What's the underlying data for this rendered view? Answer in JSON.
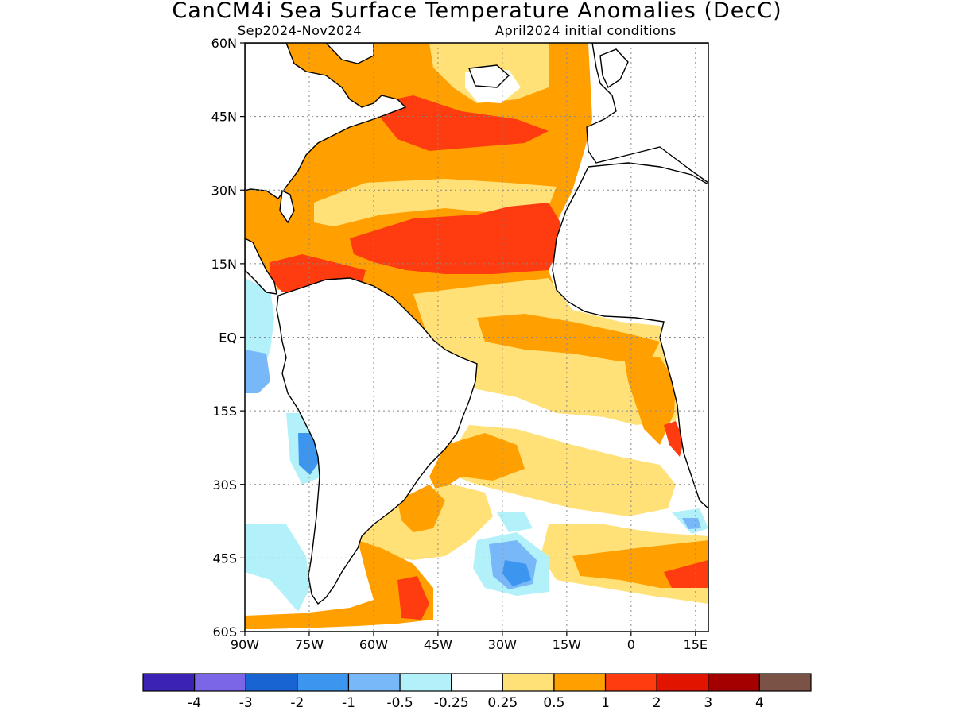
{
  "title": "CanCM4i Sea Surface Temperature Anomalies (DecC)",
  "subtitle_left": "Sep2024-Nov2024",
  "subtitle_right": "April2024 initial conditions",
  "map": {
    "lon_range": [
      -90,
      18
    ],
    "lat_range": [
      -60,
      60
    ],
    "lat_ticks": [
      {
        "value": 60,
        "label": "60N"
      },
      {
        "value": 45,
        "label": "45N"
      },
      {
        "value": 30,
        "label": "30N"
      },
      {
        "value": 15,
        "label": "15N"
      },
      {
        "value": 0,
        "label": "EQ"
      },
      {
        "value": -15,
        "label": "15S"
      },
      {
        "value": -30,
        "label": "30S"
      },
      {
        "value": -45,
        "label": "45S"
      },
      {
        "value": -60,
        "label": "60S"
      }
    ],
    "lon_ticks": [
      {
        "value": -90,
        "label": "90W"
      },
      {
        "value": -75,
        "label": "75W"
      },
      {
        "value": -60,
        "label": "60W"
      },
      {
        "value": -45,
        "label": "45W"
      },
      {
        "value": -30,
        "label": "30W"
      },
      {
        "value": -15,
        "label": "15W"
      },
      {
        "value": 0,
        "label": "0"
      },
      {
        "value": 15,
        "label": "15E"
      }
    ],
    "grid": "dotted",
    "land_color": "#ffffff",
    "coastline_color": "#000000"
  },
  "colorbar": {
    "colors": [
      "#3c22b4",
      "#7a66e6",
      "#1864d2",
      "#3c96f0",
      "#78b8f8",
      "#b2f0fa",
      "#ffffff",
      "#ffe178",
      "#ffa000",
      "#ff3c0f",
      "#e11400",
      "#a50000",
      "#7a5246"
    ],
    "labels": [
      "-4",
      "-3",
      "-2",
      "-1",
      "-0.5",
      "-0.25",
      "0.25",
      "0.5",
      "1",
      "2",
      "3",
      "4"
    ]
  },
  "palette": {
    "light_yellow": "#ffe178",
    "orange": "#ffa000",
    "red_orange": "#ff3c0f",
    "red": "#e11400",
    "dark_red": "#a50000",
    "brown": "#7a5246",
    "light_cyan": "#b2f0fa",
    "light_blue": "#78b8f8",
    "blue": "#3c96f0"
  }
}
